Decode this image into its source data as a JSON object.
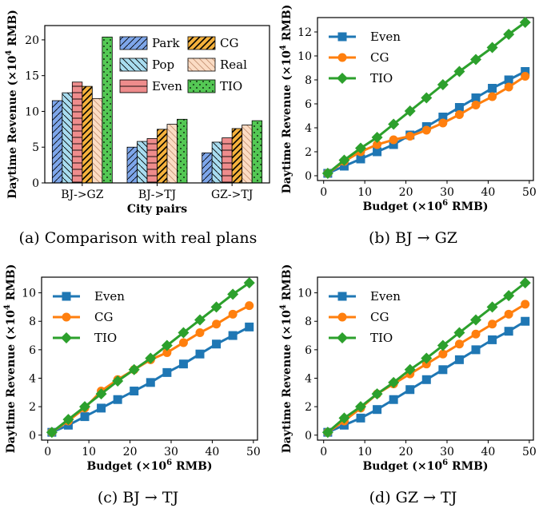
{
  "chart_data": [
    {
      "type": "bar",
      "caption": "(a) Comparison with real plans",
      "xlabel": "City pairs",
      "ylabel_prefix": "Daytime Revenue (×10",
      "ylabel_exp": "4",
      "ylabel_suffix": " RMB)",
      "ylim": [
        0,
        22
      ],
      "yticks": [
        0,
        5,
        10,
        15,
        20
      ],
      "categories": [
        "BJ->GZ",
        "BJ->TJ",
        "GZ->TJ"
      ],
      "series": [
        {
          "name": "Park",
          "values": [
            11.5,
            5.0,
            4.2
          ],
          "color": "#7ea6ea"
        },
        {
          "name": "Pop",
          "values": [
            12.6,
            5.8,
            5.7
          ],
          "color": "#a8dcef"
        },
        {
          "name": "Even",
          "values": [
            14.1,
            6.2,
            6.3
          ],
          "color": "#ee8c8c"
        },
        {
          "name": "CG",
          "values": [
            13.5,
            7.5,
            7.6
          ],
          "color": "#f5b13c"
        },
        {
          "name": "Real",
          "values": [
            11.8,
            8.2,
            8.1
          ],
          "color": "#fbdcc4"
        },
        {
          "name": "TIO",
          "values": [
            20.4,
            8.9,
            8.7
          ],
          "color": "#54c854"
        }
      ]
    },
    {
      "type": "line",
      "caption": "(b) BJ → GZ",
      "xlabel_prefix": "Budget (×10",
      "xlabel_exp": "6",
      "xlabel_suffix": " RMB)",
      "ylabel_prefix": "Daytime Revenue (×10",
      "ylabel_exp": "4",
      "ylabel_suffix": " RMB)",
      "xlim": [
        -1.5,
        51
      ],
      "ylim": [
        -0.4,
        13.2
      ],
      "xticks": [
        0,
        10,
        20,
        30,
        40,
        50
      ],
      "yticks": [
        0,
        2,
        4,
        6,
        8,
        10,
        12
      ],
      "x": [
        1,
        5,
        9,
        13,
        17,
        21,
        25,
        29,
        33,
        37,
        41,
        45,
        49
      ],
      "series": [
        {
          "name": "Even",
          "values": [
            0.2,
            0.8,
            1.4,
            2.0,
            2.6,
            3.4,
            4.1,
            4.9,
            5.7,
            6.5,
            7.3,
            8.0,
            8.7
          ],
          "color": "#1f77b4",
          "marker": "square"
        },
        {
          "name": "CG",
          "values": [
            0.2,
            1.2,
            2.0,
            2.6,
            3.0,
            3.3,
            3.8,
            4.4,
            5.1,
            5.9,
            6.6,
            7.4,
            8.3
          ],
          "color": "#ff7f0e",
          "marker": "circle"
        },
        {
          "name": "TIO",
          "values": [
            0.2,
            1.3,
            2.3,
            3.2,
            4.3,
            5.4,
            6.5,
            7.6,
            8.7,
            9.7,
            10.7,
            11.8,
            12.8
          ],
          "color": "#2ca02c",
          "marker": "diamond"
        }
      ]
    },
    {
      "type": "line",
      "caption": "(c) BJ → TJ",
      "xlabel_prefix": "Budget (×10",
      "xlabel_exp": "6",
      "xlabel_suffix": " RMB)",
      "ylabel_prefix": "Daytime Revenue (×10",
      "ylabel_exp": "4",
      "ylabel_suffix": " RMB)",
      "xlim": [
        -1.5,
        51
      ],
      "ylim": [
        -0.35,
        11.1
      ],
      "xticks": [
        0,
        10,
        20,
        30,
        40,
        50
      ],
      "yticks": [
        0,
        2,
        4,
        6,
        8,
        10
      ],
      "x": [
        1,
        5,
        9,
        13,
        17,
        21,
        25,
        29,
        33,
        37,
        41,
        45,
        49
      ],
      "series": [
        {
          "name": "Even",
          "values": [
            0.2,
            0.7,
            1.3,
            1.9,
            2.5,
            3.1,
            3.7,
            4.4,
            5.0,
            5.7,
            6.4,
            7.0,
            7.6
          ],
          "color": "#1f77b4",
          "marker": "square"
        },
        {
          "name": "CG",
          "values": [
            0.2,
            1.0,
            1.9,
            3.1,
            3.9,
            4.6,
            5.3,
            5.8,
            6.5,
            7.2,
            7.8,
            8.5,
            9.1
          ],
          "color": "#ff7f0e",
          "marker": "circle"
        },
        {
          "name": "TIO",
          "values": [
            0.2,
            1.1,
            2.0,
            2.9,
            3.8,
            4.6,
            5.4,
            6.3,
            7.2,
            8.1,
            9.0,
            9.9,
            10.7
          ],
          "color": "#2ca02c",
          "marker": "diamond"
        }
      ]
    },
    {
      "type": "line",
      "caption": "(d) GZ → TJ",
      "xlabel_prefix": "Budget (×10",
      "xlabel_exp": "6",
      "xlabel_suffix": " RMB)",
      "ylabel_prefix": "Daytime Revenue (×10",
      "ylabel_exp": "4",
      "ylabel_suffix": " RMB)",
      "xlim": [
        -1.5,
        51
      ],
      "ylim": [
        -0.35,
        11.1
      ],
      "xticks": [
        0,
        10,
        20,
        30,
        40,
        50
      ],
      "yticks": [
        0,
        2,
        4,
        6,
        8,
        10
      ],
      "x": [
        1,
        5,
        9,
        13,
        17,
        21,
        25,
        29,
        33,
        37,
        41,
        45,
        49
      ],
      "series": [
        {
          "name": "Even",
          "values": [
            0.2,
            0.7,
            1.2,
            1.8,
            2.5,
            3.2,
            3.9,
            4.6,
            5.3,
            6.0,
            6.7,
            7.3,
            8.0
          ],
          "color": "#1f77b4",
          "marker": "square"
        },
        {
          "name": "CG",
          "values": [
            0.2,
            1.0,
            1.9,
            2.9,
            3.6,
            4.3,
            5.0,
            5.7,
            6.4,
            7.1,
            7.8,
            8.5,
            9.2
          ],
          "color": "#ff7f0e",
          "marker": "circle"
        },
        {
          "name": "TIO",
          "values": [
            0.2,
            1.2,
            2.0,
            2.9,
            3.7,
            4.6,
            5.4,
            6.3,
            7.2,
            8.1,
            9.0,
            9.8,
            10.7
          ],
          "color": "#2ca02c",
          "marker": "diamond"
        }
      ]
    }
  ]
}
